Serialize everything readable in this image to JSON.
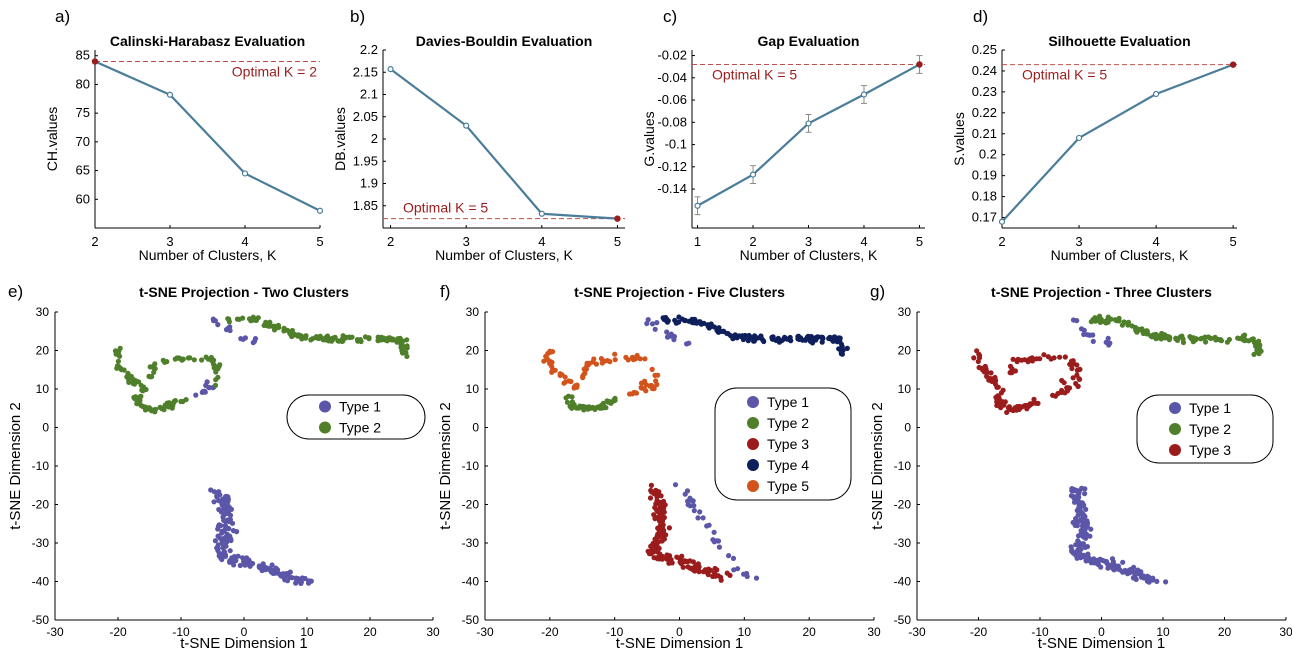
{
  "chart_data": [
    {
      "panel": "a)",
      "type": "line",
      "title": "Calinski-Harabasz Evaluation",
      "xlabel": "Number of Clusters, K",
      "ylabel": "CH.values",
      "x": [
        2,
        3,
        4,
        5
      ],
      "values": [
        84.0,
        78.2,
        64.5,
        58.0
      ],
      "xlim": [
        2,
        5
      ],
      "ylim": [
        55,
        86
      ],
      "xticks": [
        "2",
        "3",
        "4",
        "5"
      ],
      "yticks": [
        "60",
        "65",
        "70",
        "75",
        "80",
        "85"
      ],
      "annotation": "Optimal K = 2",
      "optimal_index": 0,
      "grid": false
    },
    {
      "panel": "b)",
      "type": "line",
      "title": "Davies-Bouldin Evaluation",
      "xlabel": "Number of Clusters, K",
      "ylabel": "DB.values",
      "x": [
        2,
        3,
        4,
        5
      ],
      "values": [
        2.157,
        2.03,
        1.832,
        1.821
      ],
      "xlim": [
        1.9,
        5.1
      ],
      "ylim": [
        1.8,
        2.2
      ],
      "xticks": [
        "2",
        "3",
        "4",
        "5"
      ],
      "yticks": [
        "1.85",
        "1.9",
        "1.95",
        "2",
        "2.05",
        "2.1",
        "2.15",
        "2.2"
      ],
      "annotation": "Optimal K = 5",
      "optimal_index": 3,
      "grid": false
    },
    {
      "panel": "c)",
      "type": "line",
      "title": "Gap Evaluation",
      "xlabel": "Number of Clusters, K",
      "ylabel": "G.values",
      "x": [
        1,
        2,
        3,
        4,
        5
      ],
      "values": [
        -0.155,
        -0.127,
        -0.081,
        -0.055,
        -0.028
      ],
      "error": [
        0.008,
        0.008,
        0.008,
        0.008,
        0.008
      ],
      "xlim": [
        0.9,
        5.1
      ],
      "ylim": [
        -0.175,
        -0.015
      ],
      "xticks": [
        "1",
        "2",
        "3",
        "4",
        "5"
      ],
      "yticks": [
        "-0.14",
        "-0.12",
        "-0.1",
        "-0.08",
        "-0.06",
        "-0.04",
        "-0.02"
      ],
      "annotation": "Optimal K = 5",
      "optimal_index": 4,
      "grid": false
    },
    {
      "panel": "d)",
      "type": "line",
      "title": "Silhouette Evaluation",
      "xlabel": "Number of Clusters, K",
      "ylabel": "S.values",
      "x": [
        2,
        3,
        4,
        5
      ],
      "values": [
        0.168,
        0.208,
        0.229,
        0.243
      ],
      "xlim": [
        2,
        5.05
      ],
      "ylim": [
        0.165,
        0.25
      ],
      "xticks": [
        "2",
        "3",
        "4",
        "5"
      ],
      "yticks": [
        "0.17",
        "0.18",
        "0.19",
        "0.2",
        "0.21",
        "0.22",
        "0.23",
        "0.24",
        "0.25"
      ],
      "annotation": "Optimal K = 5",
      "optimal_index": 3,
      "grid": false
    },
    {
      "panel": "e)",
      "type": "scatter",
      "title": "t-SNE Projection - Two Clusters",
      "xlabel": "t-SNE Dimension 1",
      "ylabel": "t-SNE Dimension 2",
      "xlim": [
        -30,
        30
      ],
      "ylim": [
        -50,
        30
      ],
      "xticks": [
        "-30",
        "-20",
        "-10",
        "0",
        "10",
        "20",
        "30"
      ],
      "yticks": [
        "-50",
        "-40",
        "-30",
        "-20",
        "-10",
        "0",
        "10",
        "20",
        "30"
      ],
      "legend": [
        "Type 1",
        "Type 2"
      ],
      "legend_position": "right-middle",
      "series": [
        {
          "name": "Type 1",
          "color": "#5b56a8",
          "regions": [
            "lower",
            "tops",
            "loopmid"
          ]
        },
        {
          "name": "Type 2",
          "color": "#4f7f2a",
          "regions": [
            "top",
            "left",
            "bowl",
            "loopup"
          ]
        }
      ]
    },
    {
      "panel": "f)",
      "type": "scatter",
      "title": "t-SNE Projection - Five Clusters",
      "xlabel": "t-SNE Dimension 1",
      "ylabel": "t-SNE Dimension 2",
      "xlim": [
        -30,
        30
      ],
      "ylim": [
        -50,
        30
      ],
      "xticks": [
        "-30",
        "-20",
        "-10",
        "0",
        "10",
        "20",
        "30"
      ],
      "yticks": [
        "-50",
        "-40",
        "-30",
        "-20",
        "-10",
        "0",
        "10",
        "20",
        "30"
      ],
      "legend": [
        "Type 1",
        "Type 2",
        "Type 3",
        "Type 4",
        "Type 5"
      ],
      "legend_position": "right-middle",
      "series": [
        {
          "name": "Type 1",
          "color": "#5b56a8",
          "regions": [
            "lowtail",
            "tops"
          ]
        },
        {
          "name": "Type 2",
          "color": "#4f7f2a",
          "regions": [
            "bowl"
          ]
        },
        {
          "name": "Type 3",
          "color": "#9b1c1c",
          "regions": [
            "lowmain"
          ]
        },
        {
          "name": "Type 4",
          "color": "#0f1f5c",
          "regions": [
            "top"
          ]
        },
        {
          "name": "Type 5",
          "color": "#d2541c",
          "regions": [
            "left",
            "loopmid",
            "loopup"
          ]
        }
      ]
    },
    {
      "panel": "g)",
      "type": "scatter",
      "title": "t-SNE Projection - Three Clusters",
      "xlabel": "t-SNE Dimension 1",
      "ylabel": "t-SNE Dimension 2",
      "xlim": [
        -30,
        30
      ],
      "ylim": [
        -50,
        30
      ],
      "xticks": [
        "-30",
        "-20",
        "-10",
        "0",
        "10",
        "20",
        "30"
      ],
      "yticks": [
        "-50",
        "-40",
        "-30",
        "-20",
        "-10",
        "0",
        "10",
        "20",
        "30"
      ],
      "legend": [
        "Type 1",
        "Type 2",
        "Type 3"
      ],
      "legend_position": "right-middle",
      "series": [
        {
          "name": "Type 1",
          "color": "#5b56a8",
          "regions": [
            "lower",
            "tops"
          ]
        },
        {
          "name": "Type 2",
          "color": "#4f7f2a",
          "regions": [
            "top"
          ]
        },
        {
          "name": "Type 3",
          "color": "#9b1c1c",
          "regions": [
            "left",
            "bowl",
            "loopmid",
            "loopup"
          ]
        }
      ]
    }
  ],
  "colors": {
    "line": "#4a7d99",
    "optimal_marker": "#9b1c1c",
    "annotation": "#9b1c1c",
    "dashed_line": "#c0504d"
  }
}
